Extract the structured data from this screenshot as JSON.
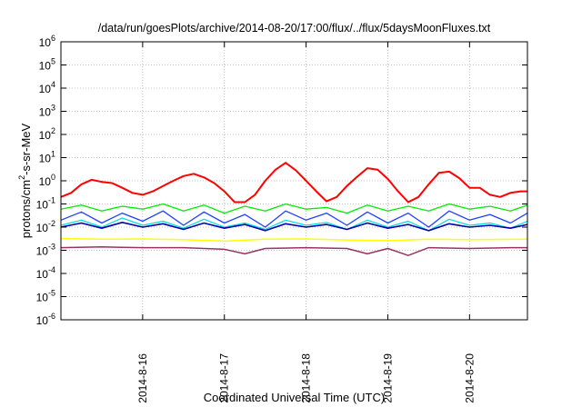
{
  "chart_data": {
    "type": "line",
    "title": "/data/run/goesPlots/archive/2014-08-20/17:00/flux/../flux/5daysMoonFluxes.txt",
    "xlabel": "Coordinated Universal Time (UTC)",
    "ylabel": {
      "base": "protons/cm",
      "sup": "2",
      "rest": "-s-sr-MeV"
    },
    "y_scale": "log",
    "ylim": [
      1e-06,
      1000000.0
    ],
    "y_ticks": [
      {
        "value": 1e-06,
        "base": "10",
        "exp": "-6"
      },
      {
        "value": 1e-05,
        "base": "10",
        "exp": "-5"
      },
      {
        "value": 0.0001,
        "base": "10",
        "exp": "-4"
      },
      {
        "value": 0.001,
        "base": "10",
        "exp": "-3"
      },
      {
        "value": 0.01,
        "base": "10",
        "exp": "-2"
      },
      {
        "value": 0.1,
        "base": "10",
        "exp": "-1"
      },
      {
        "value": 1,
        "base": "10",
        "exp": "0"
      },
      {
        "value": 10,
        "base": "10",
        "exp": "1"
      },
      {
        "value": 100,
        "base": "10",
        "exp": "2"
      },
      {
        "value": 1000,
        "base": "10",
        "exp": "3"
      },
      {
        "value": 10000,
        "base": "10",
        "exp": "4"
      },
      {
        "value": 100000,
        "base": "10",
        "exp": "5"
      },
      {
        "value": 1000000,
        "base": "10",
        "exp": "6"
      }
    ],
    "xlim": [
      "2014-08-15 00:00",
      "2014-08-20 17:00"
    ],
    "x_ticks": [
      {
        "value": "2014-08-16 00:00",
        "label": "2014-8-16"
      },
      {
        "value": "2014-08-17 00:00",
        "label": "2014-8-17"
      },
      {
        "value": "2014-08-18 00:00",
        "label": "2014-8-18"
      },
      {
        "value": "2014-08-19 00:00",
        "label": "2014-8-19"
      },
      {
        "value": "2014-08-20 00:00",
        "label": "2014-8-20"
      }
    ],
    "grid": true,
    "series": [
      {
        "color": "#ff0000",
        "stroke": 2,
        "x": [
          "2014-08-15 00:00",
          "2014-08-15 03:00",
          "2014-08-15 06:00",
          "2014-08-15 09:00",
          "2014-08-15 12:00",
          "2014-08-15 15:00",
          "2014-08-15 18:00",
          "2014-08-15 21:00",
          "2014-08-16 00:00",
          "2014-08-16 03:00",
          "2014-08-16 06:00",
          "2014-08-16 09:00",
          "2014-08-16 12:00",
          "2014-08-16 15:00",
          "2014-08-16 18:00",
          "2014-08-16 21:00",
          "2014-08-17 00:00",
          "2014-08-17 03:00",
          "2014-08-17 06:00",
          "2014-08-17 09:00",
          "2014-08-17 12:00",
          "2014-08-17 15:00",
          "2014-08-17 18:00",
          "2014-08-17 21:00",
          "2014-08-18 00:00",
          "2014-08-18 03:00",
          "2014-08-18 06:00",
          "2014-08-18 09:00",
          "2014-08-18 12:00",
          "2014-08-18 15:00",
          "2014-08-18 18:00",
          "2014-08-18 21:00",
          "2014-08-19 00:00",
          "2014-08-19 03:00",
          "2014-08-19 06:00",
          "2014-08-19 09:00",
          "2014-08-19 12:00",
          "2014-08-19 15:00",
          "2014-08-19 18:00",
          "2014-08-19 21:00",
          "2014-08-20 00:00",
          "2014-08-20 03:00",
          "2014-08-20 06:00",
          "2014-08-20 09:00",
          "2014-08-20 12:00",
          "2014-08-20 15:00",
          "2014-08-20 17:00"
        ],
        "y": [
          0.2,
          0.3,
          0.7,
          1.1,
          0.9,
          0.8,
          0.5,
          0.3,
          0.25,
          0.35,
          0.6,
          1.0,
          1.6,
          2.0,
          1.4,
          0.8,
          0.35,
          0.12,
          0.12,
          0.25,
          1.0,
          3.0,
          6.0,
          2.8,
          1.0,
          0.35,
          0.13,
          0.2,
          0.6,
          1.5,
          3.5,
          3.0,
          1.2,
          0.35,
          0.12,
          0.2,
          0.7,
          2.2,
          2.5,
          1.3,
          0.5,
          0.5,
          0.25,
          0.2,
          0.3,
          0.35,
          0.35
        ]
      },
      {
        "color": "#00ee00",
        "stroke": 1.3,
        "x": [
          "2014-08-15 00:00",
          "2014-08-15 06:00",
          "2014-08-15 12:00",
          "2014-08-15 18:00",
          "2014-08-16 00:00",
          "2014-08-16 06:00",
          "2014-08-16 12:00",
          "2014-08-16 18:00",
          "2014-08-17 00:00",
          "2014-08-17 06:00",
          "2014-08-17 12:00",
          "2014-08-17 18:00",
          "2014-08-18 00:00",
          "2014-08-18 06:00",
          "2014-08-18 12:00",
          "2014-08-18 18:00",
          "2014-08-19 00:00",
          "2014-08-19 06:00",
          "2014-08-19 12:00",
          "2014-08-19 18:00",
          "2014-08-20 00:00",
          "2014-08-20 06:00",
          "2014-08-20 12:00",
          "2014-08-20 17:00"
        ],
        "y": [
          0.06,
          0.09,
          0.05,
          0.08,
          0.06,
          0.1,
          0.05,
          0.09,
          0.04,
          0.08,
          0.05,
          0.1,
          0.06,
          0.07,
          0.04,
          0.09,
          0.05,
          0.08,
          0.05,
          0.1,
          0.06,
          0.08,
          0.05,
          0.09
        ]
      },
      {
        "color": "#00dddd",
        "stroke": 1.2,
        "x": [
          "2014-08-15 00:00",
          "2014-08-15 06:00",
          "2014-08-15 12:00",
          "2014-08-15 18:00",
          "2014-08-16 00:00",
          "2014-08-16 06:00",
          "2014-08-16 12:00",
          "2014-08-16 18:00",
          "2014-08-17 00:00",
          "2014-08-17 06:00",
          "2014-08-17 12:00",
          "2014-08-17 18:00",
          "2014-08-18 00:00",
          "2014-08-18 06:00",
          "2014-08-18 12:00",
          "2014-08-18 18:00",
          "2014-08-19 00:00",
          "2014-08-19 06:00",
          "2014-08-19 12:00",
          "2014-08-19 18:00",
          "2014-08-20 00:00",
          "2014-08-20 06:00",
          "2014-08-20 12:00",
          "2014-08-20 17:00"
        ],
        "y": [
          0.012,
          0.02,
          0.01,
          0.025,
          0.012,
          0.018,
          0.009,
          0.022,
          0.01,
          0.015,
          0.008,
          0.02,
          0.012,
          0.016,
          0.008,
          0.02,
          0.01,
          0.018,
          0.007,
          0.022,
          0.012,
          0.015,
          0.009,
          0.018
        ]
      },
      {
        "color": "#2040ff",
        "stroke": 1.3,
        "x": [
          "2014-08-15 00:00",
          "2014-08-15 06:00",
          "2014-08-15 12:00",
          "2014-08-15 18:00",
          "2014-08-16 00:00",
          "2014-08-16 06:00",
          "2014-08-16 12:00",
          "2014-08-16 18:00",
          "2014-08-17 00:00",
          "2014-08-17 06:00",
          "2014-08-17 12:00",
          "2014-08-17 18:00",
          "2014-08-18 00:00",
          "2014-08-18 06:00",
          "2014-08-18 12:00",
          "2014-08-18 18:00",
          "2014-08-19 00:00",
          "2014-08-19 06:00",
          "2014-08-19 12:00",
          "2014-08-19 18:00",
          "2014-08-20 00:00",
          "2014-08-20 06:00",
          "2014-08-20 12:00",
          "2014-08-20 17:00"
        ],
        "y": [
          0.02,
          0.045,
          0.015,
          0.04,
          0.018,
          0.05,
          0.012,
          0.045,
          0.015,
          0.035,
          0.01,
          0.05,
          0.02,
          0.04,
          0.012,
          0.045,
          0.015,
          0.04,
          0.01,
          0.05,
          0.02,
          0.035,
          0.015,
          0.04
        ]
      },
      {
        "color": "#0000aa",
        "stroke": 1.6,
        "x": [
          "2014-08-15 00:00",
          "2014-08-15 06:00",
          "2014-08-15 12:00",
          "2014-08-15 18:00",
          "2014-08-16 00:00",
          "2014-08-16 06:00",
          "2014-08-16 12:00",
          "2014-08-16 18:00",
          "2014-08-17 00:00",
          "2014-08-17 06:00",
          "2014-08-17 12:00",
          "2014-08-17 18:00",
          "2014-08-18 00:00",
          "2014-08-18 06:00",
          "2014-08-18 12:00",
          "2014-08-18 18:00",
          "2014-08-19 00:00",
          "2014-08-19 06:00",
          "2014-08-19 12:00",
          "2014-08-19 18:00",
          "2014-08-20 00:00",
          "2014-08-20 06:00",
          "2014-08-20 12:00",
          "2014-08-20 17:00"
        ],
        "y": [
          0.01,
          0.015,
          0.009,
          0.016,
          0.01,
          0.014,
          0.008,
          0.015,
          0.009,
          0.013,
          0.007,
          0.014,
          0.01,
          0.013,
          0.008,
          0.015,
          0.009,
          0.013,
          0.007,
          0.014,
          0.01,
          0.012,
          0.009,
          0.013
        ]
      },
      {
        "color": "#ffff00",
        "stroke": 1.5,
        "x": [
          "2014-08-15 00:00",
          "2014-08-15 12:00",
          "2014-08-16 00:00",
          "2014-08-16 12:00",
          "2014-08-17 00:00",
          "2014-08-17 12:00",
          "2014-08-18 00:00",
          "2014-08-18 12:00",
          "2014-08-19 00:00",
          "2014-08-19 12:00",
          "2014-08-20 00:00",
          "2014-08-20 17:00"
        ],
        "y": [
          0.0032,
          0.003,
          0.0031,
          0.0029,
          0.0025,
          0.003,
          0.0031,
          0.0028,
          0.0026,
          0.003,
          0.0029,
          0.003
        ]
      },
      {
        "color": "#993366",
        "stroke": 1.5,
        "x": [
          "2014-08-15 00:00",
          "2014-08-15 12:00",
          "2014-08-16 00:00",
          "2014-08-16 12:00",
          "2014-08-17 00:00",
          "2014-08-17 06:00",
          "2014-08-17 12:00",
          "2014-08-18 00:00",
          "2014-08-18 12:00",
          "2014-08-18 18:00",
          "2014-08-19 00:00",
          "2014-08-19 06:00",
          "2014-08-19 12:00",
          "2014-08-20 00:00",
          "2014-08-20 12:00",
          "2014-08-20 17:00"
        ],
        "y": [
          0.0013,
          0.0014,
          0.0013,
          0.0013,
          0.0011,
          0.0007,
          0.0012,
          0.0013,
          0.0012,
          0.0007,
          0.0012,
          0.0006,
          0.0013,
          0.0012,
          0.0013,
          0.0013
        ]
      }
    ]
  }
}
